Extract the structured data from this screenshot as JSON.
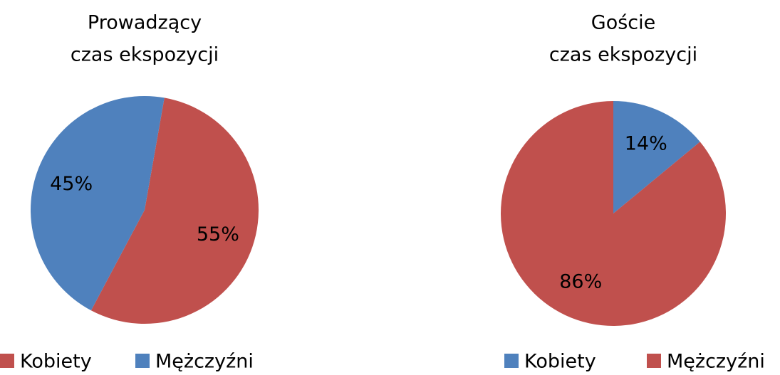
{
  "chart_data": [
    {
      "type": "pie",
      "title": [
        "Prowadzący",
        "czas ekspozycji"
      ],
      "categories": [
        "Kobiety",
        "Mężczyźni"
      ],
      "values": [
        55,
        45
      ],
      "value_labels": [
        "55%",
        "45%"
      ],
      "colors": [
        "#c0504d",
        "#4f81bd"
      ]
    },
    {
      "type": "pie",
      "title": [
        "Goście",
        "czas ekspozycji"
      ],
      "categories": [
        "Kobiety",
        "Mężczyźni"
      ],
      "values": [
        14,
        86
      ],
      "value_labels": [
        "14%",
        "86%"
      ],
      "colors": [
        "#4f81bd",
        "#c0504d"
      ]
    }
  ]
}
